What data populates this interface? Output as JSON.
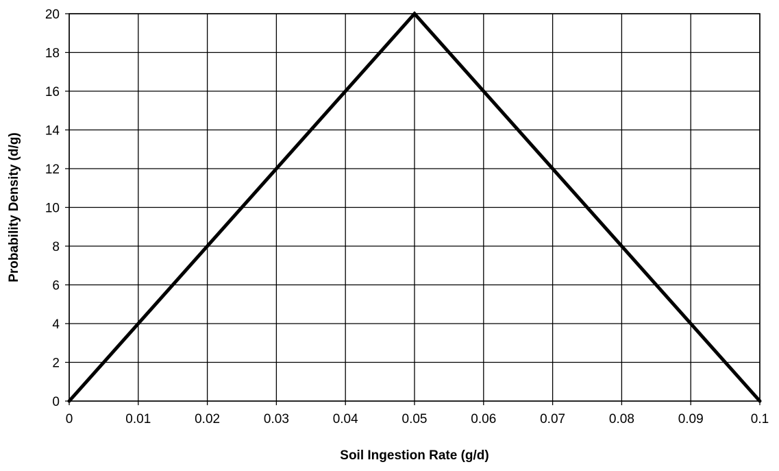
{
  "chart_data": {
    "type": "line",
    "title": "",
    "xlabel": "Soil Ingestion Rate (g/d)",
    "ylabel": "Probability Density (d/g)",
    "xlim": [
      0,
      0.1
    ],
    "ylim": [
      0,
      20
    ],
    "x_ticks": [
      "0",
      "0.01",
      "0.02",
      "0.03",
      "0.04",
      "0.05",
      "0.06",
      "0.07",
      "0.08",
      "0.09",
      "0.1"
    ],
    "y_ticks": [
      "0",
      "2",
      "4",
      "6",
      "8",
      "10",
      "12",
      "14",
      "16",
      "18",
      "20"
    ],
    "grid": true,
    "legend": "none",
    "series": [
      {
        "x": [
          0,
          0.05,
          0.1
        ],
        "y": [
          0,
          20,
          0
        ],
        "color": "#000000"
      }
    ]
  }
}
